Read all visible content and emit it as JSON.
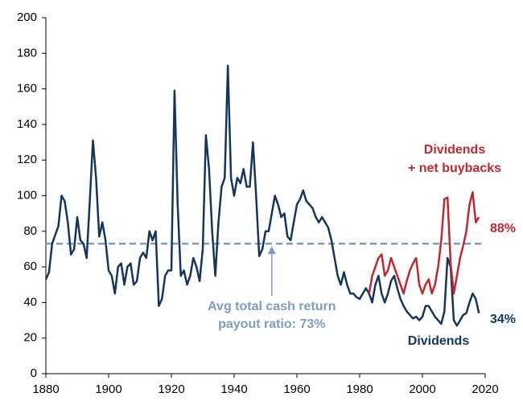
{
  "chart_data": {
    "type": "line",
    "x": [
      1880,
      1881,
      1882,
      1883,
      1884,
      1885,
      1886,
      1887,
      1888,
      1889,
      1890,
      1891,
      1892,
      1893,
      1894,
      1895,
      1896,
      1897,
      1898,
      1899,
      1900,
      1901,
      1902,
      1903,
      1904,
      1905,
      1906,
      1907,
      1908,
      1909,
      1910,
      1911,
      1912,
      1913,
      1914,
      1915,
      1916,
      1917,
      1918,
      1919,
      1920,
      1921,
      1922,
      1923,
      1924,
      1925,
      1926,
      1927,
      1928,
      1929,
      1930,
      1931,
      1932,
      1933,
      1934,
      1935,
      1936,
      1937,
      1938,
      1939,
      1940,
      1941,
      1942,
      1943,
      1944,
      1945,
      1946,
      1947,
      1948,
      1949,
      1950,
      1951,
      1952,
      1953,
      1954,
      1955,
      1956,
      1957,
      1958,
      1959,
      1960,
      1961,
      1962,
      1963,
      1964,
      1965,
      1966,
      1967,
      1968,
      1969,
      1970,
      1971,
      1972,
      1973,
      1974,
      1975,
      1976,
      1977,
      1978,
      1979,
      1980,
      1981,
      1982,
      1983,
      1984,
      1985,
      1986,
      1987,
      1988,
      1989,
      1990,
      1991,
      1992,
      1993,
      1994,
      1995,
      1996,
      1997,
      1998,
      1999,
      2000,
      2001,
      2002,
      2003,
      2004,
      2005,
      2006,
      2007,
      2008,
      2009,
      2010,
      2011,
      2012,
      2013,
      2014,
      2015,
      2016,
      2017,
      2018
    ],
    "series": [
      {
        "name": "Dividends",
        "color": "#14365e",
        "end_label": "34%",
        "values": [
          53,
          57,
          73,
          78,
          83,
          100,
          97,
          85,
          67,
          70,
          88,
          75,
          73,
          65,
          97,
          131,
          110,
          77,
          85,
          75,
          58,
          55,
          45,
          60,
          62,
          50,
          60,
          62,
          50,
          52,
          65,
          68,
          65,
          80,
          75,
          80,
          38,
          42,
          55,
          58,
          58,
          159,
          95,
          55,
          58,
          50,
          55,
          65,
          60,
          52,
          70,
          134,
          115,
          80,
          55,
          85,
          105,
          110,
          173,
          110,
          100,
          110,
          107,
          115,
          105,
          105,
          130,
          100,
          66,
          70,
          80,
          80,
          90,
          100,
          95,
          88,
          90,
          77,
          75,
          85,
          95,
          98,
          103,
          97,
          95,
          93,
          88,
          85,
          88,
          85,
          82,
          75,
          65,
          55,
          50,
          57,
          50,
          45,
          45,
          43,
          42,
          45,
          48,
          45,
          40,
          50,
          55,
          45,
          40,
          45,
          52,
          55,
          48,
          42,
          38,
          35,
          33,
          31,
          32,
          30,
          32,
          38,
          38,
          35,
          32,
          30,
          28,
          35,
          65,
          60,
          30,
          27,
          30,
          33,
          34,
          40,
          45,
          42,
          34
        ]
      },
      {
        "label_lines": [
          "Dividends",
          "+ net buybacks"
        ],
        "color": "#c0282e",
        "end_label": "88%",
        "values": [
          null,
          null,
          null,
          null,
          null,
          null,
          null,
          null,
          null,
          null,
          null,
          null,
          null,
          null,
          null,
          null,
          null,
          null,
          null,
          null,
          null,
          null,
          null,
          null,
          null,
          null,
          null,
          null,
          null,
          null,
          null,
          null,
          null,
          null,
          null,
          null,
          null,
          null,
          null,
          null,
          null,
          null,
          null,
          null,
          null,
          null,
          null,
          null,
          null,
          null,
          null,
          null,
          null,
          null,
          null,
          null,
          null,
          null,
          null,
          null,
          null,
          null,
          null,
          null,
          null,
          null,
          null,
          null,
          null,
          null,
          null,
          null,
          null,
          null,
          null,
          null,
          null,
          null,
          null,
          null,
          null,
          null,
          null,
          null,
          null,
          null,
          null,
          null,
          null,
          null,
          null,
          null,
          null,
          null,
          null,
          null,
          null,
          null,
          null,
          null,
          null,
          null,
          null,
          45,
          55,
          60,
          65,
          67,
          55,
          58,
          65,
          60,
          55,
          50,
          45,
          52,
          58,
          62,
          65,
          50,
          45,
          50,
          53,
          45,
          50,
          60,
          75,
          98,
          99,
          62,
          45,
          55,
          65,
          72,
          80,
          95,
          102,
          85,
          88
        ]
      }
    ],
    "reference_line": {
      "value": 73,
      "color": "#7f9cc0",
      "label_lines": [
        "Avg total cash return",
        "payout ratio: 73%"
      ]
    },
    "xlim": [
      1880,
      2020
    ],
    "xticks": [
      1880,
      1900,
      1920,
      1940,
      1960,
      1980,
      2000,
      2020
    ],
    "ylim": [
      0,
      200
    ],
    "yticks": [
      0,
      20,
      40,
      60,
      80,
      100,
      120,
      140,
      160,
      180,
      200
    ]
  }
}
